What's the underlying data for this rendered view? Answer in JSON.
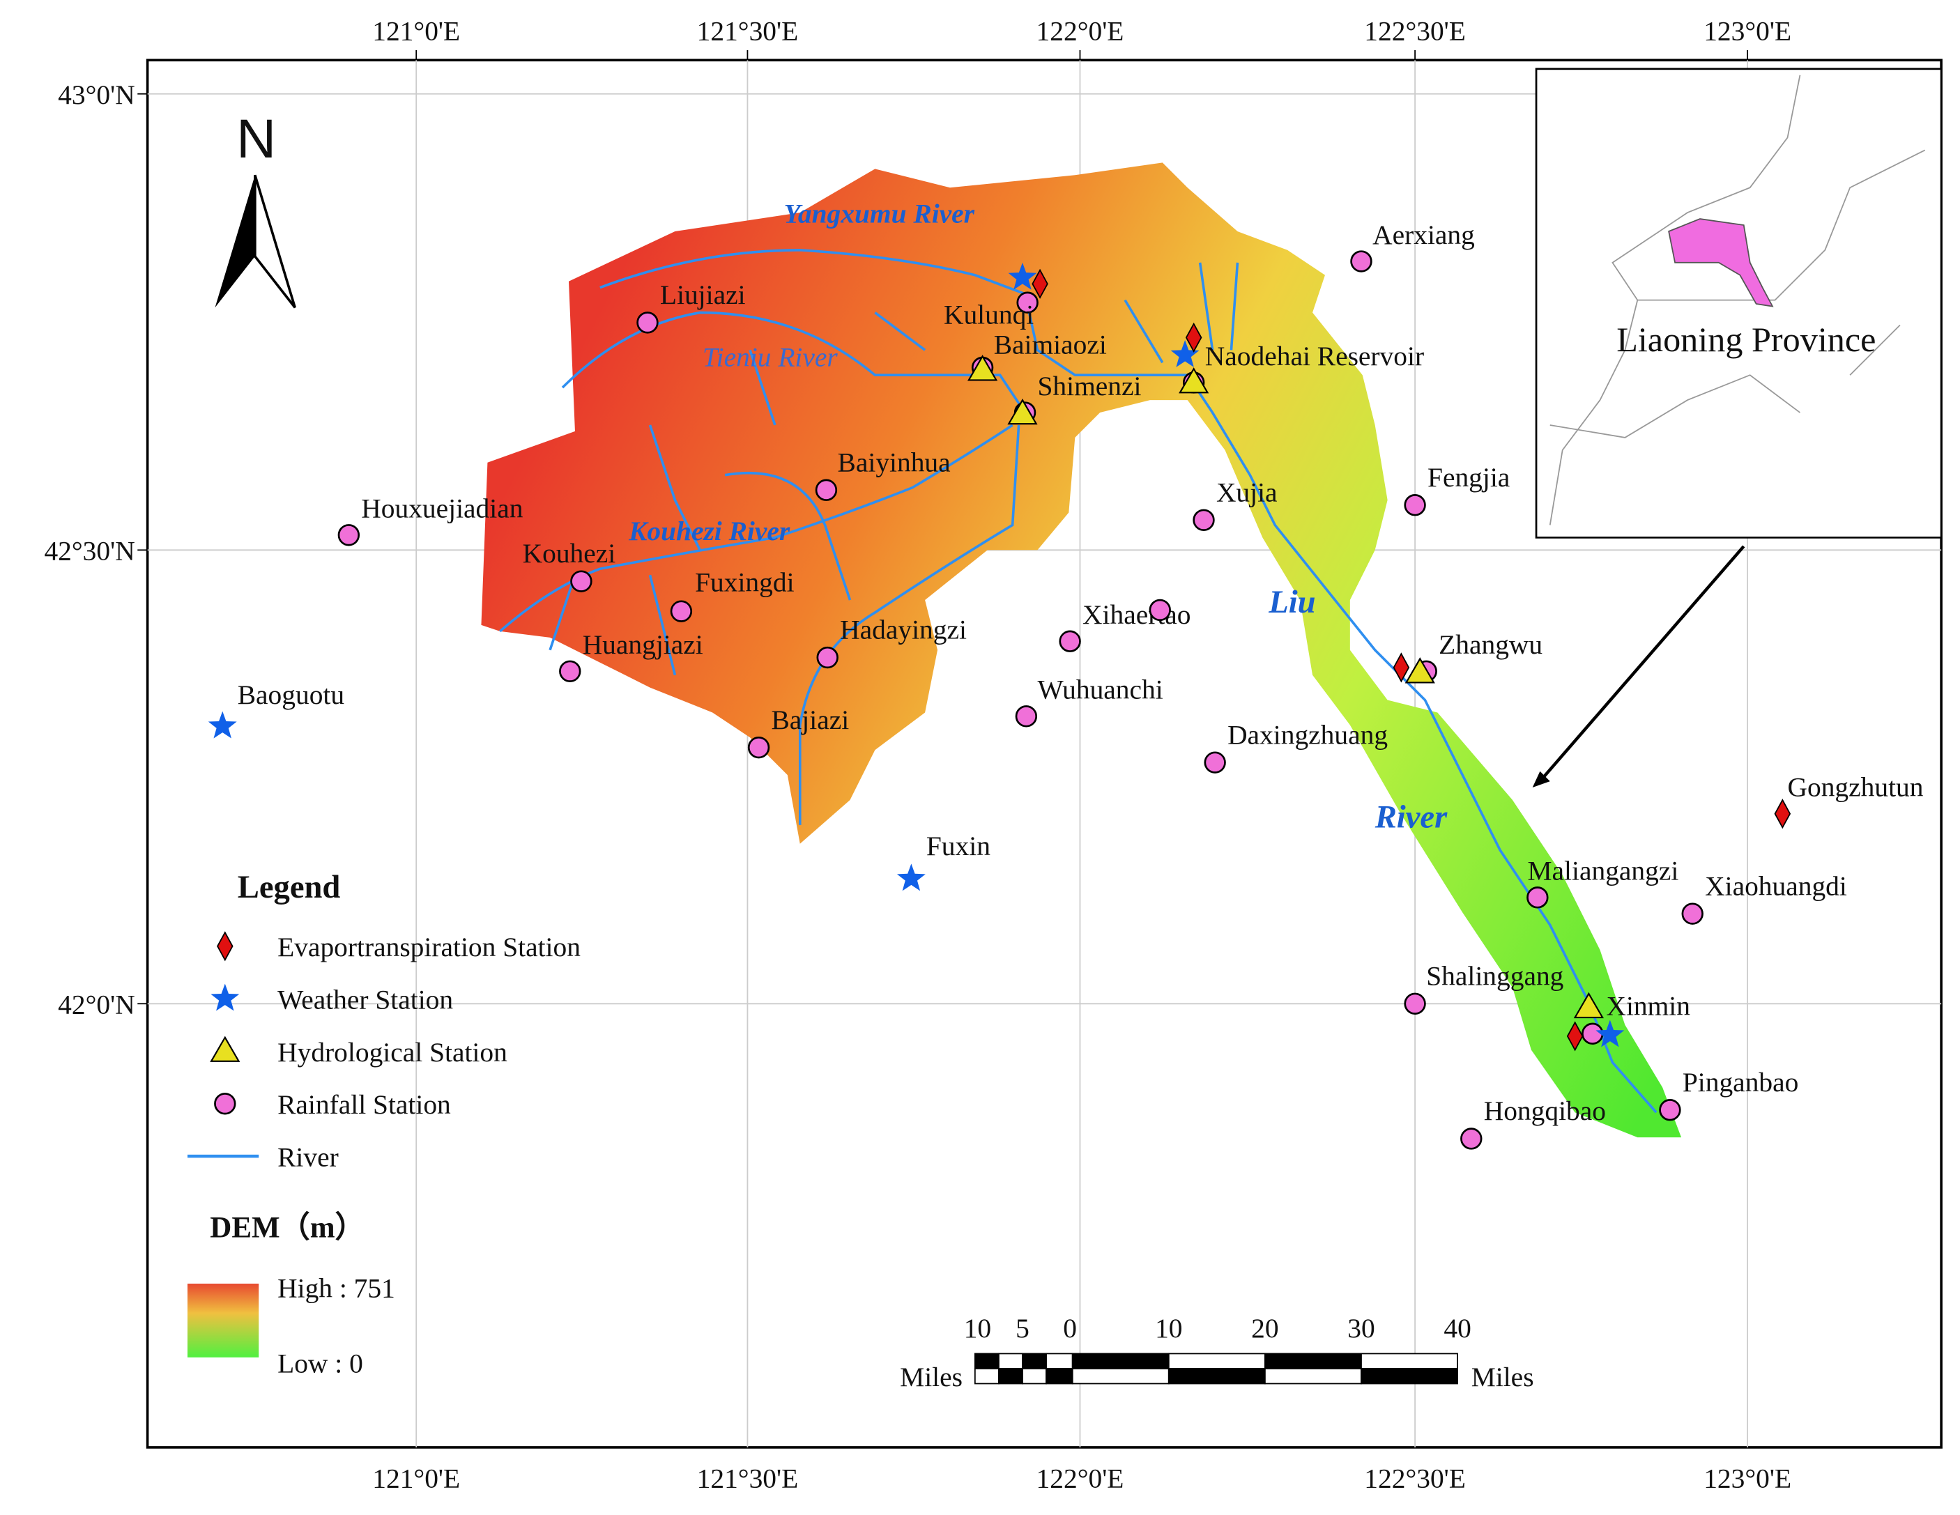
{
  "axes": {
    "lon_labels": [
      "121°0'E",
      "121°30'E",
      "122°0'E",
      "122°30'E",
      "123°0'E"
    ],
    "lat_labels": [
      "43°0'N",
      "42°30'N",
      "42°0'N"
    ]
  },
  "north": "N",
  "rivers": [
    "Yangxumu River",
    "Tieniu River",
    "Kouhezi River",
    "Liu",
    "River"
  ],
  "stations": [
    "Liujiazi",
    "Kulunqi",
    "Baimiaozi",
    "Shimenzi",
    "Baiyinhua",
    "Houxuejiadian",
    "Kouhezi",
    "Fuxingdi",
    "Huangjiazi",
    "Hadayingzi",
    "Bajiazi",
    "Xihaertao",
    "Wuhuanchi",
    "Daxingzhuang",
    "Xujia",
    "Fengjia",
    "Aerxiang",
    "Zhangwu",
    "Naodehai Reservoir",
    "Maliangangzi",
    "Xiaohuangdi",
    "Shalinggang",
    "Xinmin",
    "Pinganbao",
    "Hongqibao",
    "Baoguotu",
    "Fuxin",
    "Gongzhutun"
  ],
  "legend": {
    "title": "Legend",
    "items": [
      "Evaportranspiration Station",
      "Weather Station",
      "Hydrological Station",
      "Rainfall Station",
      "River"
    ]
  },
  "dem": {
    "title": "DEM（m）",
    "high": "High : 751",
    "low": "Low : 0"
  },
  "scale_bar": {
    "labels": [
      "10",
      "5",
      "0",
      "10",
      "20",
      "30",
      "40"
    ],
    "unit": "Miles"
  },
  "inset": {
    "label": "Liaoning Province"
  }
}
